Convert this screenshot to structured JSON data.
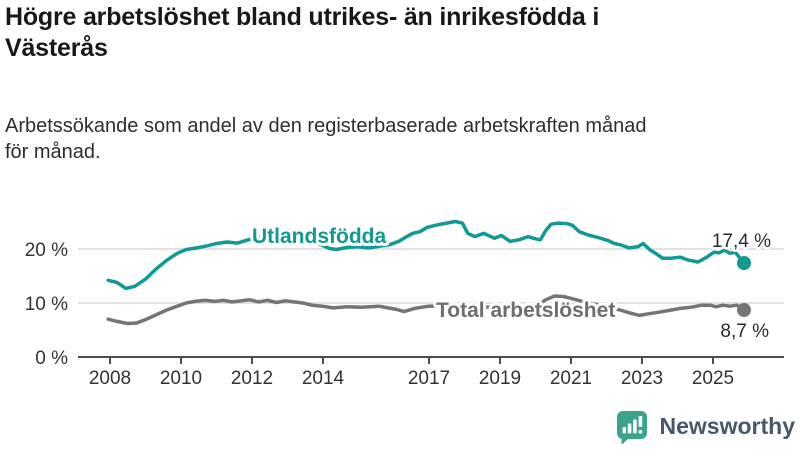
{
  "header": {
    "title": "Högre arbetslöshet bland utrikes- än inrikesfödda i Västerås",
    "title_lines": [
      "Högre arbetslöshet bland utrikes- än inrikesfödda i",
      "Västerås"
    ],
    "subtitle": "Arbetssökande som andel av den registerbaserade arbetskraften månad för månad.",
    "subtitle_lines": [
      "Arbetssökande som andel av den registerbaserade arbetskraften månad",
      "för månad."
    ]
  },
  "chart_data": {
    "type": "line",
    "title": "Högre arbetslöshet bland utrikes- än inrikesfödda i Västerås",
    "subtitle": "Arbetssökande som andel av den registerbaserade arbetskraften månad för månad.",
    "xlabel": "",
    "ylabel": "",
    "x_unit": "year (monthly data)",
    "xlim": [
      2007.95,
      2026.1
    ],
    "ylim": [
      0,
      26
    ],
    "grid": "horizontal-only",
    "legend_position": "inline-labels",
    "x_ticks": [
      "2008",
      "2010",
      "2012",
      "2014",
      "2017",
      "2019",
      "2021",
      "2023",
      "2025"
    ],
    "x_tick_years": [
      2008,
      2010,
      2012,
      2014,
      2017,
      2019,
      2021,
      2023,
      2025
    ],
    "y_ticks": [
      "20 %",
      "10 %",
      "0 %"
    ],
    "y_tick_values": [
      20,
      10,
      0
    ],
    "series": [
      {
        "name": "Utlandsfödda",
        "color": "#109a93",
        "end_label": "17,4 %",
        "end_value": 17.4,
        "points": [
          [
            2007.95,
            14.2
          ],
          [
            2008.2,
            13.8
          ],
          [
            2008.45,
            12.7
          ],
          [
            2008.7,
            13.1
          ],
          [
            2009.0,
            14.4
          ],
          [
            2009.3,
            16.3
          ],
          [
            2009.6,
            17.9
          ],
          [
            2009.9,
            19.2
          ],
          [
            2010.15,
            19.9
          ],
          [
            2010.45,
            20.2
          ],
          [
            2010.75,
            20.6
          ],
          [
            2011.0,
            21.0
          ],
          [
            2011.3,
            21.3
          ],
          [
            2011.6,
            21.1
          ],
          [
            2011.9,
            21.7
          ],
          [
            2012.2,
            22.2
          ],
          [
            2012.5,
            22.7
          ],
          [
            2012.7,
            23.1
          ],
          [
            2012.95,
            22.6
          ],
          [
            2013.2,
            23.0
          ],
          [
            2013.4,
            23.3
          ],
          [
            2013.65,
            21.9
          ],
          [
            2013.95,
            20.8
          ],
          [
            2014.2,
            20.1
          ],
          [
            2014.4,
            19.9
          ],
          [
            2014.7,
            20.3
          ],
          [
            2015.0,
            20.4
          ],
          [
            2015.3,
            20.2
          ],
          [
            2015.6,
            20.5
          ],
          [
            2015.9,
            20.8
          ],
          [
            2016.15,
            21.4
          ],
          [
            2016.35,
            22.2
          ],
          [
            2016.55,
            22.9
          ],
          [
            2016.75,
            23.2
          ],
          [
            2016.95,
            24.0
          ],
          [
            2017.2,
            24.4
          ],
          [
            2017.5,
            24.8
          ],
          [
            2017.75,
            25.1
          ],
          [
            2017.95,
            24.8
          ],
          [
            2018.1,
            22.9
          ],
          [
            2018.3,
            22.3
          ],
          [
            2018.55,
            22.9
          ],
          [
            2018.85,
            22.0
          ],
          [
            2019.05,
            22.5
          ],
          [
            2019.3,
            21.4
          ],
          [
            2019.55,
            21.7
          ],
          [
            2019.8,
            22.3
          ],
          [
            2020.0,
            21.9
          ],
          [
            2020.15,
            21.7
          ],
          [
            2020.3,
            23.4
          ],
          [
            2020.45,
            24.6
          ],
          [
            2020.65,
            24.8
          ],
          [
            2020.9,
            24.7
          ],
          [
            2021.05,
            24.4
          ],
          [
            2021.25,
            23.2
          ],
          [
            2021.5,
            22.6
          ],
          [
            2021.8,
            22.1
          ],
          [
            2022.05,
            21.6
          ],
          [
            2022.25,
            21.0
          ],
          [
            2022.45,
            20.7
          ],
          [
            2022.65,
            20.2
          ],
          [
            2022.9,
            20.4
          ],
          [
            2023.05,
            21.0
          ],
          [
            2023.25,
            19.8
          ],
          [
            2023.4,
            19.2
          ],
          [
            2023.6,
            18.3
          ],
          [
            2023.85,
            18.3
          ],
          [
            2024.1,
            18.5
          ],
          [
            2024.3,
            18.0
          ],
          [
            2024.6,
            17.6
          ],
          [
            2024.85,
            18.5
          ],
          [
            2025.05,
            19.4
          ],
          [
            2025.2,
            19.3
          ],
          [
            2025.35,
            19.8
          ],
          [
            2025.5,
            19.2
          ],
          [
            2025.65,
            19.4
          ],
          [
            2025.9,
            17.4
          ]
        ]
      },
      {
        "name": "Total arbetslöshet",
        "color": "#757575",
        "label_color": "#6e6e6e",
        "end_label": "8,7 %",
        "end_value": 8.7,
        "points": [
          [
            2007.95,
            7.0
          ],
          [
            2008.2,
            6.6
          ],
          [
            2008.5,
            6.2
          ],
          [
            2008.75,
            6.3
          ],
          [
            2009.0,
            6.9
          ],
          [
            2009.3,
            7.8
          ],
          [
            2009.6,
            8.7
          ],
          [
            2009.9,
            9.4
          ],
          [
            2010.15,
            10.0
          ],
          [
            2010.4,
            10.3
          ],
          [
            2010.7,
            10.5
          ],
          [
            2010.95,
            10.3
          ],
          [
            2011.2,
            10.5
          ],
          [
            2011.45,
            10.2
          ],
          [
            2011.7,
            10.4
          ],
          [
            2011.95,
            10.6
          ],
          [
            2012.2,
            10.2
          ],
          [
            2012.45,
            10.5
          ],
          [
            2012.7,
            10.1
          ],
          [
            2012.95,
            10.4
          ],
          [
            2013.2,
            10.2
          ],
          [
            2013.45,
            10.0
          ],
          [
            2013.7,
            9.6
          ],
          [
            2014.0,
            9.4
          ],
          [
            2014.3,
            9.1
          ],
          [
            2014.7,
            9.3
          ],
          [
            2015.1,
            9.2
          ],
          [
            2015.6,
            9.4
          ],
          [
            2016.1,
            8.8
          ],
          [
            2016.3,
            8.4
          ],
          [
            2016.6,
            9.0
          ],
          [
            2017.0,
            9.4
          ],
          [
            2017.5,
            9.5
          ],
          [
            2018.0,
            9.4
          ],
          [
            2018.5,
            9.3
          ],
          [
            2019.0,
            9.1
          ],
          [
            2019.5,
            9.0
          ],
          [
            2020.0,
            9.3
          ],
          [
            2020.3,
            10.6
          ],
          [
            2020.55,
            11.3
          ],
          [
            2020.8,
            11.2
          ],
          [
            2021.1,
            10.7
          ],
          [
            2021.5,
            10.0
          ],
          [
            2022.0,
            9.4
          ],
          [
            2022.35,
            8.8
          ],
          [
            2022.65,
            8.2
          ],
          [
            2022.95,
            7.7
          ],
          [
            2023.2,
            8.0
          ],
          [
            2023.5,
            8.3
          ],
          [
            2023.85,
            8.7
          ],
          [
            2024.1,
            9.0
          ],
          [
            2024.4,
            9.2
          ],
          [
            2024.7,
            9.6
          ],
          [
            2024.95,
            9.6
          ],
          [
            2025.1,
            9.3
          ],
          [
            2025.3,
            9.6
          ],
          [
            2025.5,
            9.4
          ],
          [
            2025.7,
            9.6
          ],
          [
            2025.9,
            8.7
          ]
        ]
      }
    ]
  },
  "footer": {
    "brand": "Newsworthy",
    "logo_icon": "bar-chart-pin-icon",
    "badge_color": "#3ba28c",
    "text_color": "#45586c"
  }
}
